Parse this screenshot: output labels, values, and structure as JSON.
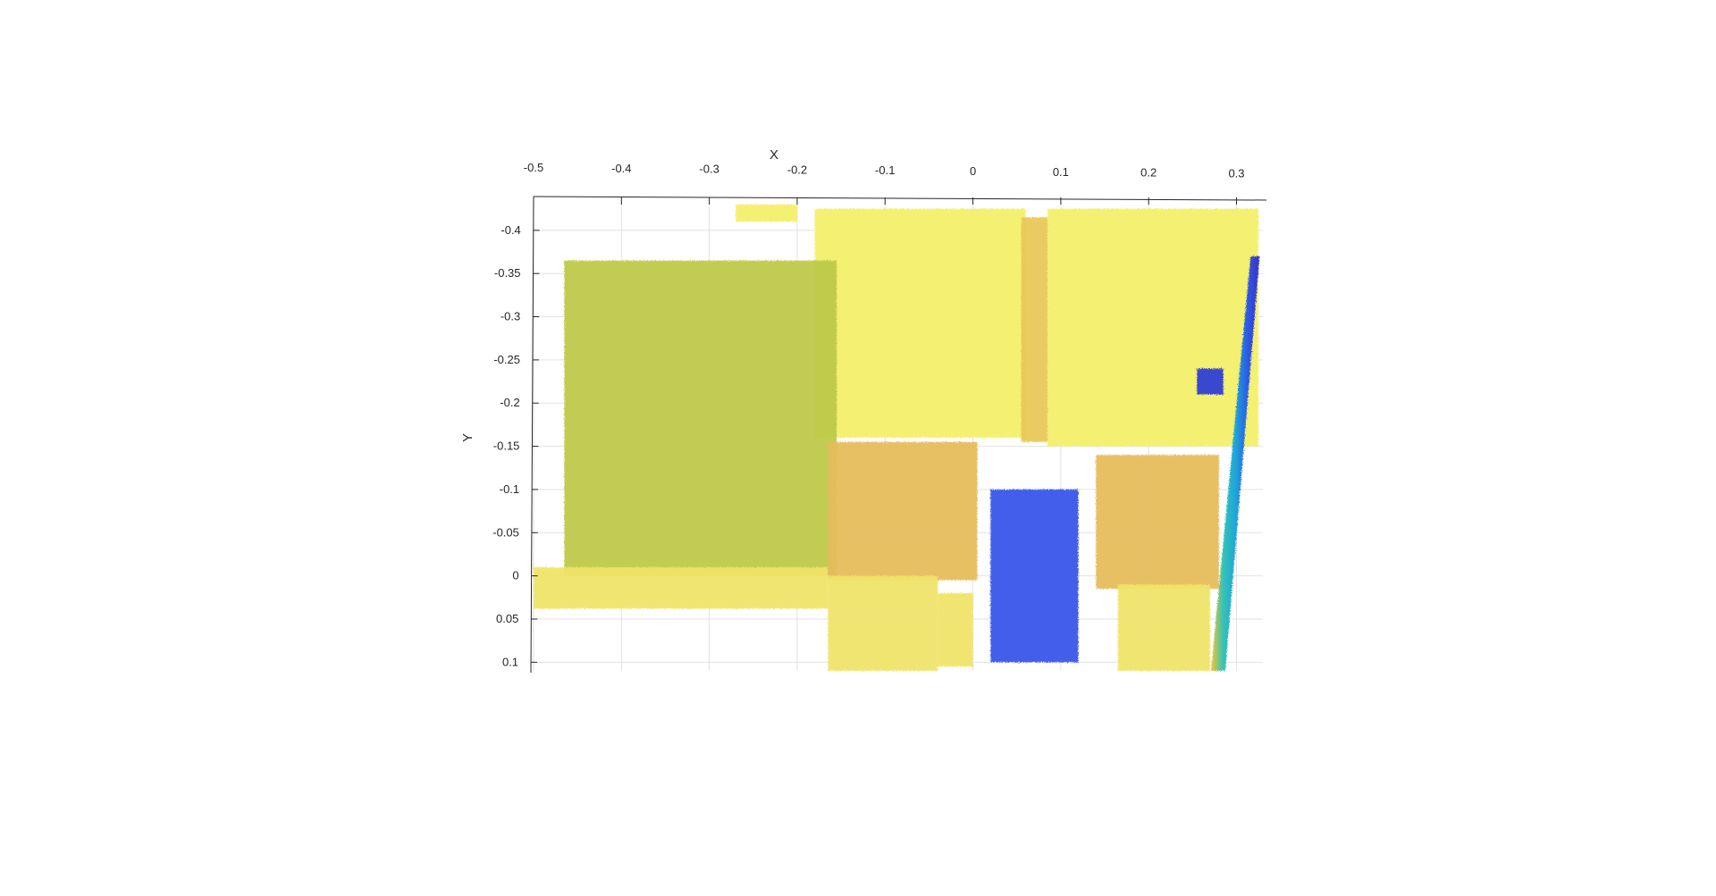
{
  "chart_data": {
    "type": "scatter",
    "title": "",
    "xlabel": "X",
    "ylabel": "Y",
    "xlim": [
      -0.5,
      0.33
    ],
    "ylim": [
      -0.435,
      0.11
    ],
    "y_reversed": true,
    "x_axis_position": "top",
    "grid": true,
    "x_ticks": [
      -0.5,
      -0.4,
      -0.3,
      -0.2,
      -0.1,
      0,
      0.1,
      0.2,
      0.3
    ],
    "x_tick_labels": [
      "-0.5",
      "-0.4",
      "-0.3",
      "-0.2",
      "-0.1",
      "0",
      "0.1",
      "0.2",
      "0.3"
    ],
    "y_ticks": [
      -0.4,
      -0.35,
      -0.3,
      -0.25,
      -0.2,
      -0.15,
      -0.1,
      -0.05,
      0,
      0.05,
      0.1
    ],
    "y_tick_labels": [
      "-0.4",
      "-0.35",
      "-0.3",
      "-0.25",
      "-0.2",
      "-0.15",
      "-0.1",
      "-0.05",
      "0",
      "0.05",
      "0.1"
    ],
    "colormap": "parula",
    "regions": [
      {
        "color": "#f3ef6a",
        "x": [
          -0.27,
          -0.2
        ],
        "y": [
          -0.43,
          -0.41
        ]
      },
      {
        "color": "#f3ef6a",
        "x": [
          -0.18,
          0.06
        ],
        "y": [
          -0.425,
          -0.16
        ]
      },
      {
        "color": "#e8c85a",
        "x": [
          0.055,
          0.085
        ],
        "y": [
          -0.415,
          -0.155
        ]
      },
      {
        "color": "#f3ef6a",
        "x": [
          0.085,
          0.325
        ],
        "y": [
          -0.425,
          -0.15
        ]
      },
      {
        "color": "#bdc94a",
        "x": [
          -0.465,
          -0.155
        ],
        "y": [
          -0.365,
          0.0
        ]
      },
      {
        "color": "#e6bd5c",
        "x": [
          -0.165,
          0.005
        ],
        "y": [
          -0.155,
          0.005
        ]
      },
      {
        "color": "#e6bd5c",
        "x": [
          0.14,
          0.28
        ],
        "y": [
          -0.14,
          0.015
        ]
      },
      {
        "color": "#f0e46a",
        "x": [
          -0.5,
          -0.165
        ],
        "y": [
          -0.01,
          0.038
        ]
      },
      {
        "color": "#f0e46a",
        "x": [
          -0.165,
          -0.04
        ],
        "y": [
          0.0,
          0.11
        ]
      },
      {
        "color": "#f0e46a",
        "x": [
          -0.04,
          0.0
        ],
        "y": [
          0.02,
          0.105
        ]
      },
      {
        "color": "#f0e46a",
        "x": [
          0.165,
          0.27
        ],
        "y": [
          0.01,
          0.11
        ]
      },
      {
        "color": "#3a55ea",
        "x": [
          0.02,
          0.12
        ],
        "y": [
          -0.1,
          0.1
        ]
      },
      {
        "color": "#2f3fd6",
        "x": [
          0.255,
          0.285
        ],
        "y": [
          -0.24,
          -0.21
        ]
      }
    ],
    "edge_band": {
      "colors": [
        "#f6c52b",
        "#35c3b6",
        "#1fa6d8",
        "#2c5be5",
        "#3d2fc4"
      ],
      "top": [
        0.31,
        -0.37
      ],
      "bottom": [
        0.275,
        0.11
      ]
    }
  }
}
